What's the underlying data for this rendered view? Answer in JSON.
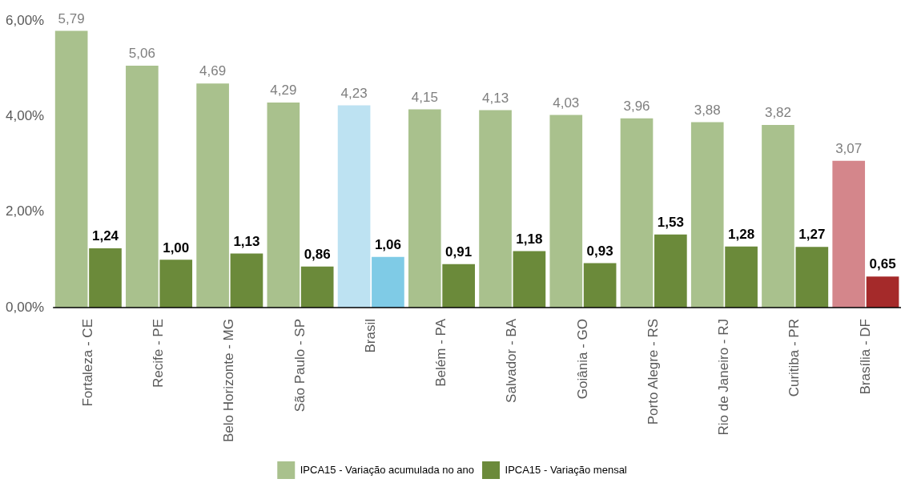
{
  "chart_data": {
    "type": "bar",
    "categories": [
      "Fortaleza - CE",
      "Recife - PE",
      "Belo Horizonte - MG",
      "São Paulo - SP",
      "Brasil",
      "Belém - PA",
      "Salvador - BA",
      "Goiânia - GO",
      "Porto Alegre - RS",
      "Rio de Janeiro - RJ",
      "Curitiba - PR",
      "Brasília - DF"
    ],
    "series": [
      {
        "name": "IPCA15 - Variação acumulada no ano",
        "color": "#a9c18d",
        "value_labels": [
          "5,79",
          "5,06",
          "4,69",
          "4,29",
          "4,23",
          "4,15",
          "4,13",
          "4,03",
          "3,96",
          "3,88",
          "3,82",
          "3,07"
        ],
        "colors": [
          "#a9c18d",
          "#a9c18d",
          "#a9c18d",
          "#a9c18d",
          "#bde2f2",
          "#a9c18d",
          "#a9c18d",
          "#a9c18d",
          "#a9c18d",
          "#a9c18d",
          "#a9c18d",
          "#d4868b"
        ],
        "values": [
          5.79,
          5.06,
          4.69,
          4.29,
          4.23,
          4.15,
          4.13,
          4.03,
          3.96,
          3.88,
          3.82,
          3.07
        ]
      },
      {
        "name": "IPCA15 - Variação mensal",
        "color": "#6b8a3a",
        "value_labels": [
          "1,24",
          "1,00",
          "1,13",
          "0,86",
          "1,06",
          "0,91",
          "1,18",
          "0,93",
          "1,53",
          "1,28",
          "1,27",
          "0,65"
        ],
        "colors": [
          "#6b8a3a",
          "#6b8a3a",
          "#6b8a3a",
          "#6b8a3a",
          "#7fcbe6",
          "#6b8a3a",
          "#6b8a3a",
          "#6b8a3a",
          "#6b8a3a",
          "#6b8a3a",
          "#6b8a3a",
          "#a52a2a"
        ],
        "values": [
          1.24,
          1.0,
          1.13,
          0.86,
          1.06,
          0.91,
          1.18,
          0.93,
          1.53,
          1.28,
          1.27,
          0.65
        ]
      }
    ],
    "ylim": [
      0,
      6
    ],
    "yticks": [
      {
        "value": 0,
        "label": "0,00%"
      },
      {
        "value": 2,
        "label": "2,00%"
      },
      {
        "value": 4,
        "label": "4,00%"
      },
      {
        "value": 6,
        "label": "6,00%"
      }
    ],
    "grid": false,
    "legend": "bottom"
  }
}
